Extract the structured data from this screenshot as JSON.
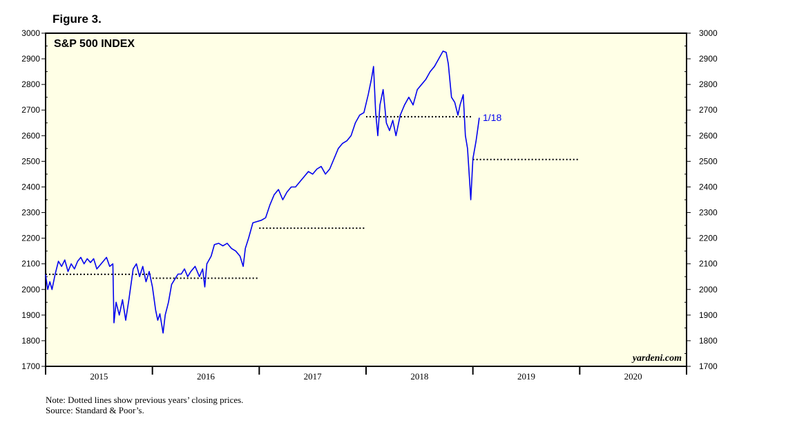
{
  "figure_label": "Figure 3.",
  "notes": {
    "note": "Note: Dotted lines show previous years’ closing prices.",
    "source": "Source: Standard & Poor’s."
  },
  "watermark": "yardeni.com",
  "colors": {
    "plot_bg": "#ffffe6",
    "line": "#0000ee",
    "dotted": "#000000",
    "frame": "#000000"
  },
  "chart_data": {
    "type": "line",
    "title": "S&P 500 INDEX",
    "xlabel": "",
    "ylabel": "",
    "x_ticks": [
      "2015",
      "2016",
      "2017",
      "2018",
      "2019",
      "2020"
    ],
    "xlim": [
      2015.0,
      2021.0
    ],
    "ylim": [
      1700,
      3000
    ],
    "y_ticks": [
      1700,
      1800,
      1900,
      2000,
      2100,
      2200,
      2300,
      2400,
      2500,
      2600,
      2700,
      2800,
      2900,
      3000
    ],
    "grid": false,
    "y_axis_both_sides": true,
    "series": [
      {
        "values_xy": [
          [
            2015.0,
            2058
          ],
          [
            2015.02,
            2000
          ],
          [
            2015.04,
            2030
          ],
          [
            2015.06,
            2000
          ],
          [
            2015.09,
            2060
          ],
          [
            2015.12,
            2110
          ],
          [
            2015.15,
            2090
          ],
          [
            2015.18,
            2115
          ],
          [
            2015.21,
            2070
          ],
          [
            2015.24,
            2100
          ],
          [
            2015.27,
            2080
          ],
          [
            2015.3,
            2110
          ],
          [
            2015.33,
            2125
          ],
          [
            2015.36,
            2100
          ],
          [
            2015.39,
            2120
          ],
          [
            2015.42,
            2105
          ],
          [
            2015.45,
            2120
          ],
          [
            2015.48,
            2080
          ],
          [
            2015.51,
            2095
          ],
          [
            2015.54,
            2110
          ],
          [
            2015.57,
            2125
          ],
          [
            2015.6,
            2090
          ],
          [
            2015.63,
            2100
          ],
          [
            2015.64,
            1870
          ],
          [
            2015.66,
            1950
          ],
          [
            2015.69,
            1900
          ],
          [
            2015.72,
            1960
          ],
          [
            2015.75,
            1880
          ],
          [
            2015.78,
            1960
          ],
          [
            2015.82,
            2080
          ],
          [
            2015.85,
            2100
          ],
          [
            2015.88,
            2050
          ],
          [
            2015.91,
            2090
          ],
          [
            2015.94,
            2030
          ],
          [
            2015.97,
            2070
          ],
          [
            2016.0,
            2010
          ],
          [
            2016.03,
            1920
          ],
          [
            2016.05,
            1880
          ],
          [
            2016.07,
            1905
          ],
          [
            2016.1,
            1830
          ],
          [
            2016.12,
            1900
          ],
          [
            2016.15,
            1950
          ],
          [
            2016.18,
            2020
          ],
          [
            2016.21,
            2040
          ],
          [
            2016.24,
            2060
          ],
          [
            2016.27,
            2060
          ],
          [
            2016.3,
            2080
          ],
          [
            2016.33,
            2050
          ],
          [
            2016.36,
            2070
          ],
          [
            2016.4,
            2090
          ],
          [
            2016.44,
            2050
          ],
          [
            2016.47,
            2080
          ],
          [
            2016.49,
            2010
          ],
          [
            2016.51,
            2100
          ],
          [
            2016.55,
            2130
          ],
          [
            2016.58,
            2175
          ],
          [
            2016.62,
            2180
          ],
          [
            2016.66,
            2170
          ],
          [
            2016.7,
            2180
          ],
          [
            2016.74,
            2160
          ],
          [
            2016.78,
            2150
          ],
          [
            2016.82,
            2130
          ],
          [
            2016.85,
            2090
          ],
          [
            2016.87,
            2160
          ],
          [
            2016.9,
            2200
          ],
          [
            2016.94,
            2260
          ],
          [
            2016.98,
            2265
          ],
          [
            2017.02,
            2270
          ],
          [
            2017.06,
            2280
          ],
          [
            2017.1,
            2330
          ],
          [
            2017.14,
            2370
          ],
          [
            2017.18,
            2390
          ],
          [
            2017.22,
            2350
          ],
          [
            2017.26,
            2380
          ],
          [
            2017.3,
            2400
          ],
          [
            2017.34,
            2400
          ],
          [
            2017.38,
            2420
          ],
          [
            2017.42,
            2440
          ],
          [
            2017.46,
            2460
          ],
          [
            2017.5,
            2450
          ],
          [
            2017.54,
            2470
          ],
          [
            2017.58,
            2480
          ],
          [
            2017.62,
            2450
          ],
          [
            2017.66,
            2470
          ],
          [
            2017.7,
            2510
          ],
          [
            2017.74,
            2550
          ],
          [
            2017.78,
            2570
          ],
          [
            2017.82,
            2580
          ],
          [
            2017.86,
            2600
          ],
          [
            2017.9,
            2650
          ],
          [
            2017.94,
            2680
          ],
          [
            2017.98,
            2690
          ],
          [
            2018.02,
            2760
          ],
          [
            2018.05,
            2820
          ],
          [
            2018.07,
            2870
          ],
          [
            2018.09,
            2690
          ],
          [
            2018.11,
            2600
          ],
          [
            2018.13,
            2720
          ],
          [
            2018.16,
            2780
          ],
          [
            2018.19,
            2650
          ],
          [
            2018.22,
            2620
          ],
          [
            2018.25,
            2660
          ],
          [
            2018.28,
            2600
          ],
          [
            2018.32,
            2680
          ],
          [
            2018.36,
            2720
          ],
          [
            2018.4,
            2750
          ],
          [
            2018.44,
            2720
          ],
          [
            2018.48,
            2780
          ],
          [
            2018.52,
            2800
          ],
          [
            2018.56,
            2820
          ],
          [
            2018.6,
            2850
          ],
          [
            2018.64,
            2870
          ],
          [
            2018.68,
            2900
          ],
          [
            2018.72,
            2930
          ],
          [
            2018.75,
            2925
          ],
          [
            2018.77,
            2880
          ],
          [
            2018.8,
            2750
          ],
          [
            2018.83,
            2730
          ],
          [
            2018.86,
            2680
          ],
          [
            2018.88,
            2720
          ],
          [
            2018.91,
            2760
          ],
          [
            2018.93,
            2600
          ],
          [
            2018.95,
            2550
          ],
          [
            2018.97,
            2420
          ],
          [
            2018.98,
            2350
          ],
          [
            2019.0,
            2510
          ],
          [
            2019.03,
            2580
          ],
          [
            2019.05,
            2640
          ],
          [
            2019.06,
            2670
          ]
        ],
        "end_label": "1/18"
      }
    ],
    "reference_lines": [
      {
        "value": 2059,
        "from": 2015.0,
        "to": 2016.0
      },
      {
        "value": 2044,
        "from": 2016.0,
        "to": 2017.0
      },
      {
        "value": 2239,
        "from": 2017.0,
        "to": 2018.0
      },
      {
        "value": 2674,
        "from": 2018.0,
        "to": 2019.0
      },
      {
        "value": 2507,
        "from": 2019.0,
        "to": 2020.0
      }
    ]
  }
}
